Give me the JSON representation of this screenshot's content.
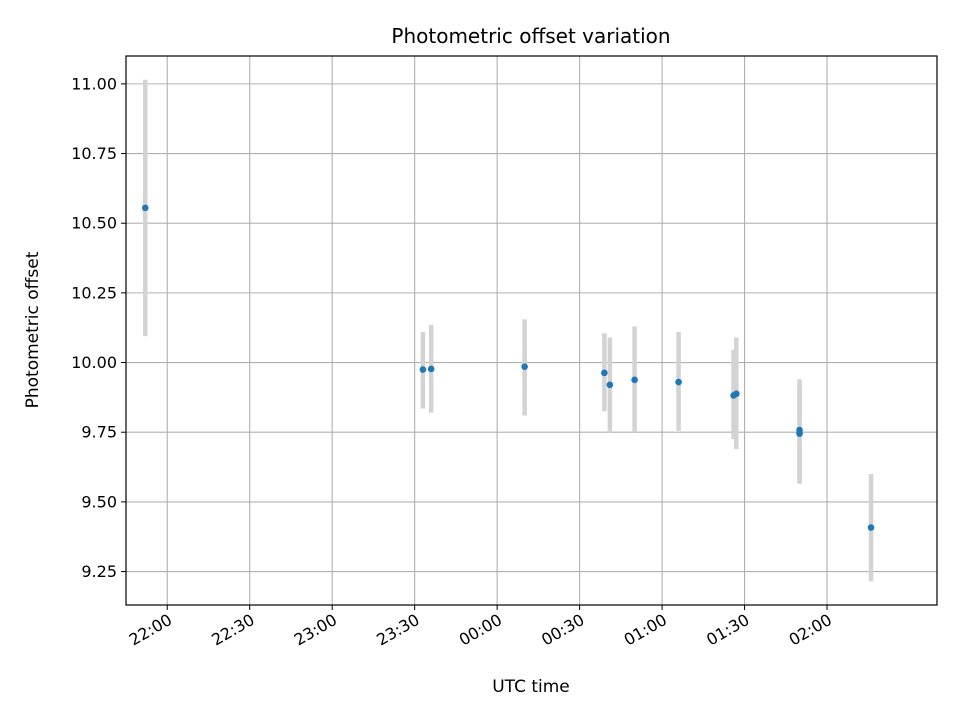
{
  "chart_data": {
    "type": "scatter",
    "title": "Photometric offset variation",
    "xlabel": "UTC time",
    "ylabel": "Photometric offset",
    "grid": true,
    "legend": "none",
    "x_axis": {
      "kind": "time",
      "range": [
        "21:45",
        "02:40"
      ],
      "ticks": [
        "22:00",
        "22:30",
        "23:00",
        "23:30",
        "00:00",
        "00:30",
        "01:00",
        "01:30",
        "02:00"
      ]
    },
    "y_axis": {
      "range": [
        9.13,
        11.1
      ],
      "ticks": [
        "9.25",
        "9.50",
        "9.75",
        "10.00",
        "10.25",
        "10.50",
        "10.75",
        "11.00"
      ]
    },
    "colors": {
      "point": "#1f77b4",
      "errorbar": "#d3d3d3",
      "grid": "#b0b0b0"
    },
    "points": [
      {
        "time": "21:52",
        "y": 10.555,
        "yerr_low": 10.095,
        "yerr_high": 11.015
      },
      {
        "time": "23:33",
        "y": 9.975,
        "yerr_low": 9.835,
        "yerr_high": 10.11
      },
      {
        "time": "23:36",
        "y": 9.977,
        "yerr_low": 9.82,
        "yerr_high": 10.135
      },
      {
        "time": "00:10",
        "y": 9.985,
        "yerr_low": 9.81,
        "yerr_high": 10.155
      },
      {
        "time": "00:39",
        "y": 9.963,
        "yerr_low": 9.825,
        "yerr_high": 10.105
      },
      {
        "time": "00:41",
        "y": 9.92,
        "yerr_low": 9.75,
        "yerr_high": 10.09
      },
      {
        "time": "00:50",
        "y": 9.938,
        "yerr_low": 9.75,
        "yerr_high": 10.13
      },
      {
        "time": "01:06",
        "y": 9.93,
        "yerr_low": 9.755,
        "yerr_high": 10.11
      },
      {
        "time": "01:26",
        "y": 9.882,
        "yerr_low": 9.725,
        "yerr_high": 10.045
      },
      {
        "time": "01:27",
        "y": 9.888,
        "yerr_low": 9.69,
        "yerr_high": 10.09
      },
      {
        "time": "01:50",
        "y": 9.758,
        "yerr_low": 9.57,
        "yerr_high": 9.94
      },
      {
        "time": "01:50",
        "y": 9.745,
        "yerr_low": 9.565,
        "yerr_high": 9.915
      },
      {
        "time": "02:16",
        "y": 9.408,
        "yerr_low": 9.215,
        "yerr_high": 9.6
      }
    ]
  }
}
